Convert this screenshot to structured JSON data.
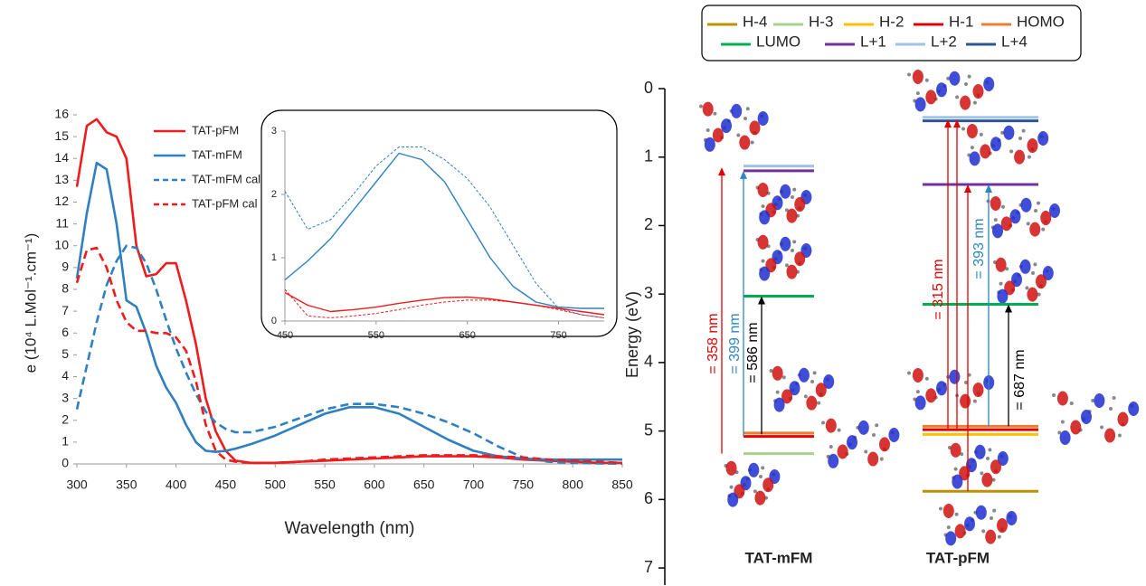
{
  "chart_data": [
    {
      "type": "line",
      "xlabel": "Wavelength (nm)",
      "ylabel": "e  (10⁴ L.Mol⁻¹.cm⁻¹)",
      "xlim": [
        300,
        850
      ],
      "xticks": [
        300,
        350,
        400,
        450,
        500,
        550,
        600,
        650,
        700,
        750,
        800,
        850
      ],
      "ylim": [
        0,
        16
      ],
      "yticks": [
        0,
        1,
        2,
        3,
        4,
        5,
        6,
        7,
        8,
        9,
        10,
        11,
        12,
        13,
        14,
        15,
        16
      ],
      "legend": "upper left",
      "x": [
        300,
        310,
        320,
        330,
        340,
        350,
        360,
        370,
        380,
        390,
        400,
        410,
        420,
        430,
        440,
        450,
        460,
        475,
        500,
        525,
        550,
        575,
        600,
        625,
        650,
        675,
        700,
        725,
        750,
        775,
        800,
        825,
        850
      ],
      "series": [
        {
          "name": "TAT-pFM",
          "color": "#ee1c1c",
          "dash": false,
          "values": [
            12.7,
            15.5,
            15.8,
            15.2,
            15.0,
            14.0,
            10.0,
            8.6,
            8.7,
            9.2,
            9.2,
            7.5,
            5.5,
            3.0,
            1.5,
            0.6,
            0.15,
            0.05,
            0.05,
            0.1,
            0.15,
            0.2,
            0.25,
            0.3,
            0.35,
            0.35,
            0.35,
            0.3,
            0.2,
            0.15,
            0.1,
            0.05,
            0.05
          ]
        },
        {
          "name": "TAT-mFM",
          "color": "#2f7fc1",
          "dash": false,
          "values": [
            8.5,
            11.5,
            13.8,
            13.5,
            11.0,
            7.5,
            7.2,
            6.0,
            4.5,
            3.5,
            2.8,
            1.8,
            1.0,
            0.6,
            0.55,
            0.6,
            0.7,
            0.9,
            1.3,
            1.8,
            2.3,
            2.6,
            2.6,
            2.3,
            1.7,
            1.1,
            0.6,
            0.35,
            0.25,
            0.2,
            0.2,
            0.2,
            0.2
          ]
        },
        {
          "name": "TAT-mFM cal",
          "color": "#2f7fc1",
          "dash": true,
          "values": [
            2.5,
            4.5,
            6.5,
            8.2,
            9.3,
            10.0,
            9.9,
            9.2,
            8.0,
            6.6,
            5.3,
            4.2,
            3.2,
            2.4,
            1.9,
            1.6,
            1.45,
            1.45,
            1.7,
            2.1,
            2.5,
            2.75,
            2.75,
            2.6,
            2.3,
            1.9,
            1.4,
            0.8,
            0.3,
            0.1,
            0.05,
            0.02,
            0.01
          ]
        },
        {
          "name": "TAT-pFM cal",
          "color": "#ee1c1c",
          "dash": true,
          "values": [
            8.3,
            9.8,
            9.9,
            9.0,
            7.5,
            6.5,
            6.1,
            6.1,
            6.0,
            6.0,
            5.8,
            5.2,
            3.8,
            1.8,
            0.6,
            0.2,
            0.1,
            0.05,
            0.05,
            0.1,
            0.2,
            0.25,
            0.3,
            0.35,
            0.4,
            0.4,
            0.4,
            0.35,
            0.3,
            0.2,
            0.15,
            0.1,
            0.05
          ]
        }
      ]
    },
    {
      "type": "line",
      "legend": false,
      "xlim": [
        450,
        800
      ],
      "xticks": [
        450,
        550,
        650,
        750
      ],
      "ylim": [
        0,
        3
      ],
      "yticks": [
        0,
        1,
        2,
        3
      ],
      "x": [
        450,
        475,
        500,
        525,
        550,
        575,
        600,
        625,
        650,
        675,
        700,
        725,
        750,
        775,
        800
      ],
      "series": [
        {
          "color": "#2f7fc1",
          "dash": false,
          "values": [
            0.65,
            0.95,
            1.3,
            1.75,
            2.2,
            2.65,
            2.55,
            2.2,
            1.6,
            1.0,
            0.55,
            0.3,
            0.22,
            0.2,
            0.2
          ]
        },
        {
          "color": "#2f7fc1",
          "dash": true,
          "values": [
            2.05,
            1.45,
            1.6,
            2.0,
            2.45,
            2.75,
            2.75,
            2.55,
            2.25,
            1.8,
            1.2,
            0.6,
            0.2,
            0.1,
            0.05
          ]
        },
        {
          "color": "#ee1c1c",
          "dash": false,
          "values": [
            0.45,
            0.25,
            0.15,
            0.18,
            0.22,
            0.28,
            0.33,
            0.37,
            0.38,
            0.35,
            0.3,
            0.25,
            0.2,
            0.15,
            0.1
          ]
        },
        {
          "color": "#ee1c1c",
          "dash": true,
          "values": [
            0.5,
            0.08,
            0.05,
            0.08,
            0.12,
            0.18,
            0.25,
            0.3,
            0.33,
            0.33,
            0.3,
            0.25,
            0.18,
            0.1,
            0.05
          ]
        }
      ]
    },
    {
      "type": "energy-level",
      "ylabel": "Energy (eV)",
      "ylim": [
        0,
        7.25
      ],
      "yticks": [
        0,
        1,
        2,
        3,
        4,
        5,
        6,
        7
      ],
      "inverted": true,
      "categories": [
        "TAT-mFM",
        "TAT-pFM"
      ],
      "series": [
        {
          "name": "H-4",
          "color": "#bf9000",
          "values": [
            null,
            5.88
          ]
        },
        {
          "name": "H-3",
          "color": "#a9d18e",
          "values": [
            5.33,
            null
          ]
        },
        {
          "name": "H-2",
          "color": "#ffc000",
          "values": [
            null,
            5.05
          ]
        },
        {
          "name": "H-1",
          "color": "#e00000",
          "values": [
            5.08,
            4.98
          ]
        },
        {
          "name": "HOMO",
          "color": "#ed7d31",
          "values": [
            5.03,
            4.93
          ]
        },
        {
          "name": "LUMO",
          "color": "#00b050",
          "values": [
            3.03,
            3.15
          ]
        },
        {
          "name": "L+1",
          "color": "#7030a0",
          "values": [
            1.2,
            1.4
          ]
        },
        {
          "name": "L+2",
          "color": "#9dc3e6",
          "values": [
            1.13,
            0.42
          ]
        },
        {
          "name": "L+4",
          "color": "#2f5597",
          "values": [
            null,
            0.47
          ]
        }
      ],
      "transitions": [
        [
          {
            "label": "= 358 nm",
            "color": "#e00000",
            "from": [
              5.33
            ],
            "to": [
              1.15
            ]
          },
          {
            "label": "= 399 nm",
            "color": "#2e86c1",
            "from": [
              5.08
            ],
            "to": [
              1.2
            ]
          },
          {
            "label": "= 586 nm",
            "color": "#000000",
            "from": [
              5.05
            ],
            "to": [
              3.03
            ]
          }
        ],
        [
          {
            "label": "= 315 nm",
            "color": "#e00000",
            "from": [
              4.98,
              4.98,
              5.88
            ],
            "to": [
              0.45,
              0.45,
              1.4
            ]
          },
          {
            "label": "= 393 nm",
            "color": "#2e86c1",
            "from": [
              4.93
            ],
            "to": [
              1.4
            ]
          },
          {
            "label": "= 687 nm",
            "color": "#000000",
            "from": [
              4.93
            ],
            "to": [
              3.15
            ]
          }
        ]
      ]
    }
  ]
}
